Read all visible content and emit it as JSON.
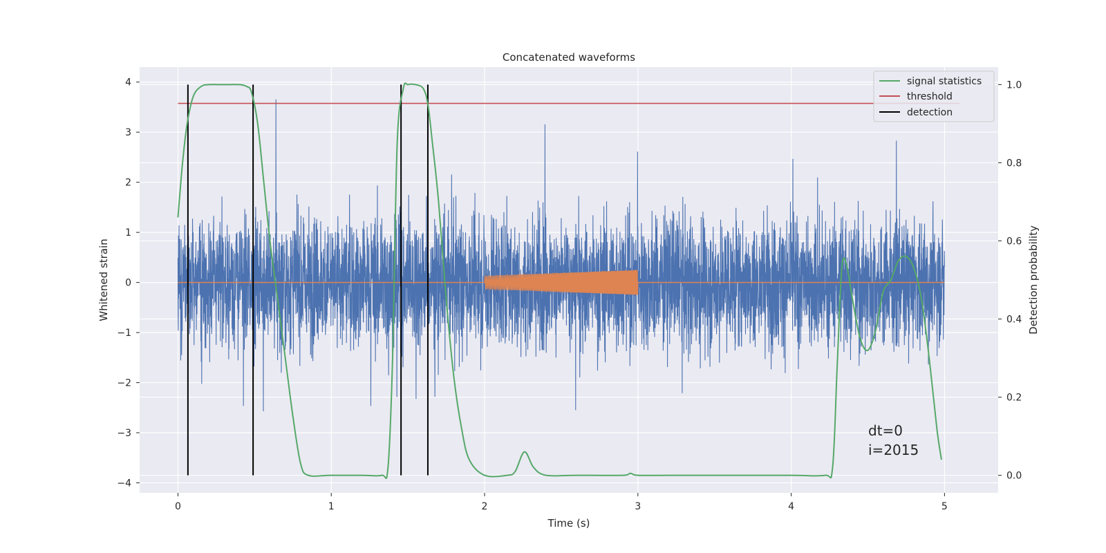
{
  "chart_data": {
    "type": "line",
    "title": "Concatenated waveforms",
    "xlabel": "Time (s)",
    "ylabel": "Whitened strain",
    "ylabel_right": "Detection probability",
    "xlim": [
      -0.25,
      5.35
    ],
    "ylim": [
      -4.2,
      4.3
    ],
    "ylim_right": [
      -0.045,
      1.045
    ],
    "xticks": [
      0,
      1,
      2,
      3,
      4,
      5
    ],
    "yticks": [
      -4,
      -3,
      -2,
      -1,
      0,
      1,
      2,
      3,
      4
    ],
    "yticks_right": [
      0.0,
      0.2,
      0.4,
      0.6,
      0.8,
      1.0
    ],
    "xtick_labels": [
      "0",
      "1",
      "2",
      "3",
      "4",
      "5"
    ],
    "ytick_labels": [
      "−4",
      "−3",
      "−2",
      "−1",
      "0",
      "1",
      "2",
      "3",
      "4"
    ],
    "ytick_right_labels": [
      "0.0",
      "0.2",
      "0.4",
      "0.6",
      "0.8",
      "1.0"
    ],
    "grid": true,
    "legend_position": "top-right",
    "colors": {
      "background": "#eaeaf2",
      "grid": "#ffffff",
      "strain": "#4c72b0",
      "template": "#dd8452",
      "signal_statistics": "#55a868",
      "threshold": "#c44e52",
      "detection": "#000000"
    },
    "legend": [
      {
        "label": "signal statistics",
        "color": "#55a868"
      },
      {
        "label": "threshold",
        "color": "#c44e52"
      },
      {
        "label": "detection",
        "color": "#000000"
      }
    ],
    "series": [
      {
        "name": "signal statistics",
        "axis": "right",
        "x": [
          0.0,
          0.03,
          0.06,
          0.1,
          0.15,
          0.2,
          0.3,
          0.4,
          0.45,
          0.48,
          0.52,
          0.56,
          0.6,
          0.65,
          0.7,
          0.75,
          0.8,
          0.85,
          1.0,
          1.2,
          1.33,
          1.37,
          1.4,
          1.43,
          1.47,
          1.5,
          1.55,
          1.6,
          1.63,
          1.66,
          1.7,
          1.75,
          1.8,
          1.85,
          1.9,
          2.0,
          2.15,
          2.2,
          2.26,
          2.32,
          2.4,
          2.6,
          2.9,
          2.95,
          3.0,
          3.2,
          3.6,
          4.0,
          4.22,
          4.27,
          4.3,
          4.33,
          4.36,
          4.4,
          4.45,
          4.5,
          4.55,
          4.6,
          4.65,
          4.7,
          4.75,
          4.8,
          4.85,
          4.9,
          4.95,
          4.98
        ],
        "y": [
          0.66,
          0.8,
          0.9,
          0.97,
          0.995,
          1.0,
          1.0,
          1.0,
          0.995,
          0.98,
          0.9,
          0.75,
          0.6,
          0.45,
          0.3,
          0.15,
          0.03,
          0.0,
          0.0,
          0.0,
          0.0,
          0.02,
          0.3,
          0.85,
          0.99,
          1.0,
          1.0,
          0.99,
          0.95,
          0.85,
          0.7,
          0.45,
          0.25,
          0.12,
          0.04,
          0.0,
          0.0,
          0.01,
          0.06,
          0.02,
          0.0,
          0.0,
          0.0,
          0.005,
          0.0,
          0.0,
          0.0,
          0.0,
          0.0,
          0.02,
          0.28,
          0.53,
          0.54,
          0.45,
          0.35,
          0.32,
          0.37,
          0.47,
          0.5,
          0.55,
          0.56,
          0.53,
          0.45,
          0.3,
          0.12,
          0.04
        ]
      },
      {
        "name": "threshold",
        "axis": "right",
        "x": [
          0.0,
          5.1
        ],
        "y": [
          0.952,
          0.952
        ]
      }
    ],
    "detections_x": [
      0.065,
      0.49,
      1.455,
      1.63
    ],
    "strain": {
      "x_range": [
        0.0,
        5.0
      ],
      "envelope": 0.72
    },
    "template": {
      "x_range": [
        2.0,
        3.0
      ],
      "amp_start": 0.13,
      "amp_end": 0.25
    }
  },
  "annotations": {
    "dt": "dt=0",
    "i": "i=2015"
  }
}
